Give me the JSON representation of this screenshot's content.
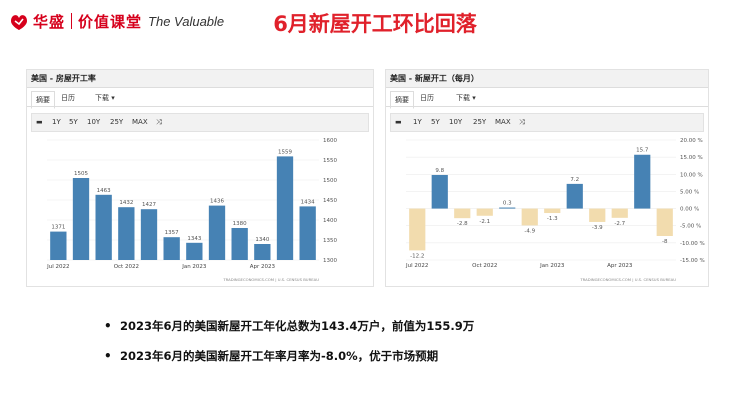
{
  "header": {
    "logo_cn": "华盛",
    "logo_cn2": "价值课堂",
    "logo_en": "The Valuable",
    "title": "6月新屋开工环比回落"
  },
  "left_panel": {
    "title": "美国 - 房屋开工率",
    "tabs": [
      "摘要",
      "日历",
      "下载 ▾"
    ],
    "ranges": [
      "1Y",
      "5Y",
      "10Y",
      "25Y",
      "MAX"
    ],
    "source": "TRADINGECONOMICS.COM | U.S. CENSUS BUREAU"
  },
  "right_panel": {
    "title": "美国 - 新屋开工（每月）",
    "tabs": [
      "摘要",
      "日历",
      "下载 ▾"
    ],
    "ranges": [
      "1Y",
      "5Y",
      "10Y",
      "25Y",
      "MAX"
    ],
    "source": "TRADINGECONOMICS.COM | U.S. CENSUS BUREAU"
  },
  "bullets": [
    "2023年6月的美国新屋开工年化总数为143.4万户，前值为155.9万",
    "2023年6月的美国新屋开工年率月率为-8.0%，优于市场预期"
  ],
  "chart_data": [
    {
      "type": "bar",
      "title": "美国 - 房屋开工率",
      "xtick_labels": [
        "Jul 2022",
        "Oct 2022",
        "Jan 2023",
        "Apr 2023"
      ],
      "values": [
        1371,
        1505,
        1463,
        1432,
        1427,
        1357,
        1343,
        1436,
        1380,
        1340,
        1559,
        1434
      ],
      "data_labels": [
        "1371",
        "1505",
        "1463",
        "1432",
        "1427",
        "1357",
        "1343",
        "1436",
        "1380",
        "1340",
        "1559",
        "1434"
      ],
      "ylim": [
        1300,
        1600
      ],
      "yticks": [
        1300,
        1350,
        1400,
        1450,
        1500,
        1550,
        1600
      ],
      "grid": true,
      "colors": {
        "bar": "#4682b4"
      }
    },
    {
      "type": "bar",
      "title": "美国 - 新屋开工（每月）",
      "xtick_labels": [
        "Jul 2022",
        "Oct 2022",
        "Jan 2023",
        "Apr 2023"
      ],
      "values": [
        -12.2,
        9.8,
        -2.8,
        -2.1,
        0.3,
        -4.9,
        -1.3,
        7.2,
        -3.9,
        -2.7,
        15.7,
        -8
      ],
      "data_labels": [
        "-12.2",
        "9.8",
        "-2.8",
        "-2.1",
        "0.3",
        "-4.9",
        "-1.3",
        "7.2",
        "-3.9",
        "-2.7",
        "15.7",
        "-8"
      ],
      "ylim": [
        -15,
        20
      ],
      "yticks": [
        "20.00 %",
        "15.00 %",
        "10.00 %",
        "5.00 %",
        "0.00 %",
        "-5.00 %",
        "-10.00 %",
        "-15.00 %"
      ],
      "grid": true,
      "colors": {
        "positive": "#4682b4",
        "negative": "#f2dcae"
      }
    }
  ]
}
